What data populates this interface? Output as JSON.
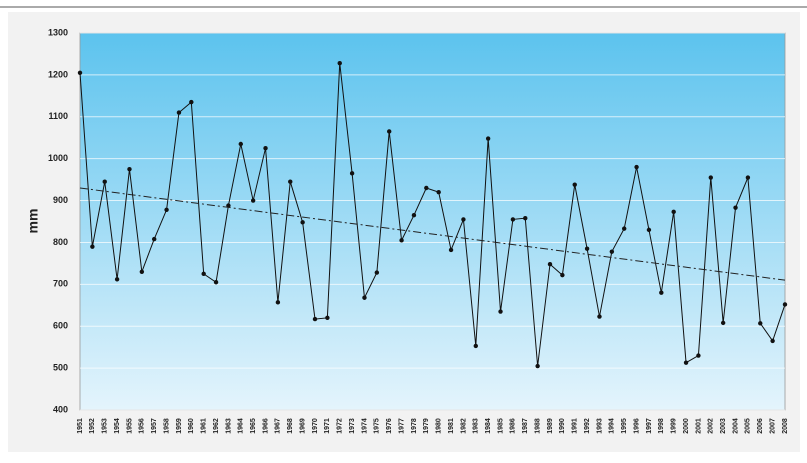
{
  "chart_data": {
    "type": "line",
    "y_label": "mm",
    "categories": [
      "1951",
      "1952",
      "1953",
      "1954",
      "1955",
      "1956",
      "1957",
      "1958",
      "1959",
      "1960",
      "1961",
      "1962",
      "1963",
      "1964",
      "1965",
      "1966",
      "1967",
      "1968",
      "1969",
      "1970",
      "1971",
      "1972",
      "1973",
      "1974",
      "1975",
      "1976",
      "1977",
      "1978",
      "1979",
      "1980",
      "1981",
      "1982",
      "1983",
      "1984",
      "1985",
      "1986",
      "1987",
      "1988",
      "1989",
      "1990",
      "1991",
      "1992",
      "1993",
      "1994",
      "1995",
      "1996",
      "1997",
      "1998",
      "1999",
      "2000",
      "2001",
      "2002",
      "2003",
      "2004",
      "2005",
      "2006",
      "2007",
      "2008"
    ],
    "values": [
      1205,
      790,
      945,
      712,
      975,
      730,
      808,
      878,
      1110,
      1135,
      725,
      705,
      888,
      1035,
      900,
      1025,
      657,
      945,
      848,
      617,
      620,
      1228,
      965,
      668,
      728,
      1065,
      805,
      865,
      930,
      920,
      782,
      855,
      553,
      1048,
      635,
      855,
      858,
      505,
      748,
      722,
      938,
      785,
      623,
      778,
      833,
      980,
      830,
      680,
      873,
      513,
      530,
      955,
      608,
      883,
      955,
      607,
      565,
      652
    ],
    "color": "#111111",
    "trend": [
      930,
      710
    ],
    "ylim": [
      400,
      1300
    ],
    "yticks": [
      400,
      500,
      600,
      700,
      800,
      900,
      1000,
      1100,
      1200,
      1300
    ],
    "grid": true
  }
}
